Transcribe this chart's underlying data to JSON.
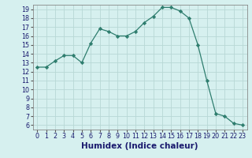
{
  "x": [
    0,
    1,
    2,
    3,
    4,
    5,
    6,
    7,
    8,
    9,
    10,
    11,
    12,
    13,
    14,
    15,
    16,
    17,
    18,
    19,
    20,
    21,
    22,
    23
  ],
  "y": [
    12.5,
    12.5,
    13.2,
    13.8,
    13.8,
    13.0,
    15.2,
    16.8,
    16.5,
    16.0,
    16.0,
    16.5,
    17.5,
    18.2,
    19.2,
    19.2,
    18.8,
    18.0,
    15.0,
    11.0,
    7.3,
    7.0,
    6.2,
    6.0
  ],
  "xlabel": "Humidex (Indice chaleur)",
  "xlim": [
    -0.5,
    23.5
  ],
  "ylim": [
    5.5,
    19.5
  ],
  "yticks": [
    6,
    7,
    8,
    9,
    10,
    11,
    12,
    13,
    14,
    15,
    16,
    17,
    18,
    19
  ],
  "xticks": [
    0,
    1,
    2,
    3,
    4,
    5,
    6,
    7,
    8,
    9,
    10,
    11,
    12,
    13,
    14,
    15,
    16,
    17,
    18,
    19,
    20,
    21,
    22,
    23
  ],
  "line_color": "#2e7d6e",
  "marker": "D",
  "marker_size": 2.2,
  "bg_color": "#d6f0ef",
  "grid_color": "#b8d8d5",
  "tick_label_fontsize": 5.8,
  "xlabel_fontsize": 7.5,
  "xlabel_color": "#1a1a6e"
}
